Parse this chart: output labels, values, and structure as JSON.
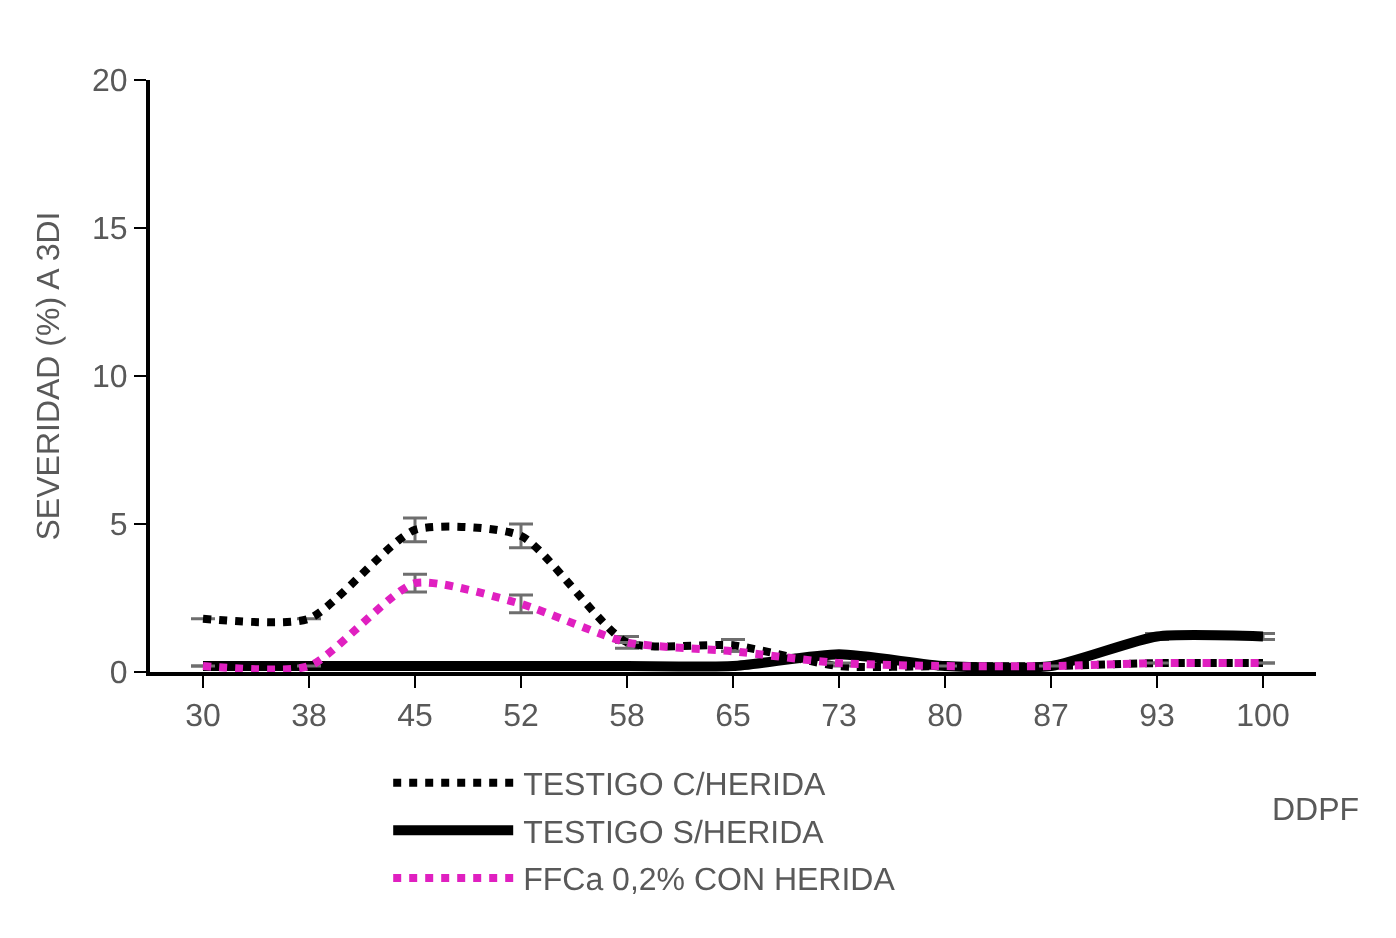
{
  "chart_data": {
    "type": "line",
    "xlabel": "DDPF",
    "ylabel": "SEVERIDAD (%) A 3DI",
    "categories": [
      "30",
      "38",
      "45",
      "52",
      "58",
      "65",
      "73",
      "80",
      "87",
      "93",
      "100"
    ],
    "ylim": [
      0,
      20
    ],
    "yticks": [
      0,
      5,
      10,
      15,
      20
    ],
    "grid": false,
    "legend": "bottom",
    "series": [
      {
        "name": "TESTIGO C/HERIDA",
        "color": "#000000",
        "line_style": "dotted",
        "values": [
          1.8,
          1.8,
          4.8,
          4.6,
          1.0,
          0.9,
          0.2,
          0.2,
          0.2,
          0.3,
          0.3
        ],
        "errors": [
          null,
          null,
          0.4,
          0.4,
          0.2,
          0.2,
          null,
          null,
          null,
          null,
          null
        ]
      },
      {
        "name": "TESTIGO S/HERIDA",
        "color": "#000000",
        "line_style": "solid",
        "values": [
          0.2,
          0.2,
          0.2,
          0.2,
          0.2,
          0.2,
          0.6,
          0.2,
          0.2,
          1.2,
          1.2
        ],
        "errors": [
          null,
          null,
          null,
          null,
          null,
          null,
          null,
          null,
          null,
          0.1,
          0.1
        ]
      },
      {
        "name": "FFCa 0,2% CON HERIDA",
        "color": "#e020c0",
        "line_style": "dotted",
        "values": [
          0.2,
          0.2,
          3.0,
          2.3,
          1.0,
          0.7,
          0.3,
          0.2,
          0.2,
          0.3,
          0.3
        ],
        "errors": [
          null,
          null,
          0.3,
          0.3,
          null,
          null,
          null,
          null,
          null,
          null,
          null
        ]
      }
    ]
  }
}
